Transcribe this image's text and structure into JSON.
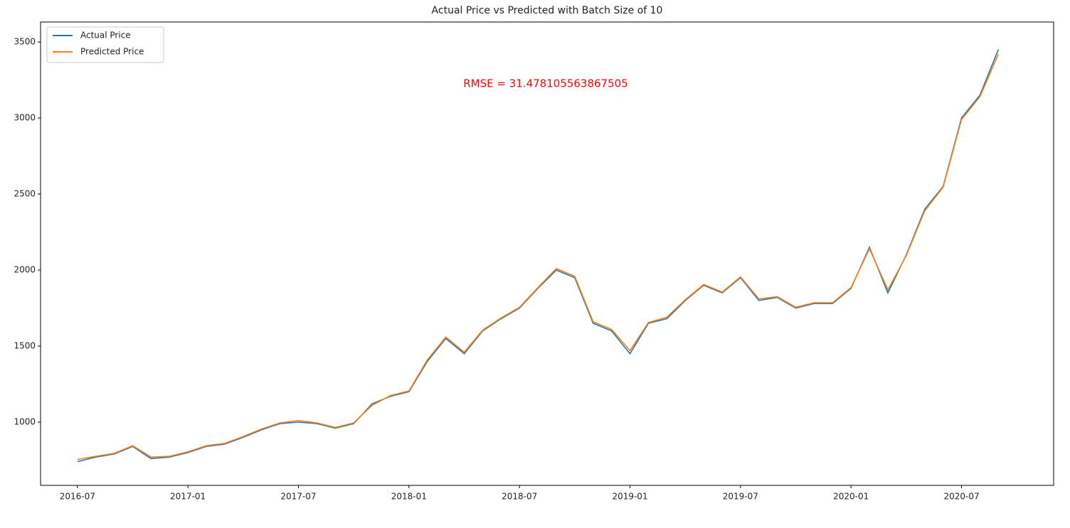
{
  "chart_data": {
    "type": "line",
    "title": "Actual Price vs Predicted with Batch Size of 10",
    "annotation": "RMSE = 31.478105563867505",
    "annotation_color": "#ff0000",
    "x": [
      "2016-07",
      "2016-08",
      "2016-09",
      "2016-10",
      "2016-11",
      "2016-12",
      "2017-01",
      "2017-02",
      "2017-03",
      "2017-04",
      "2017-05",
      "2017-06",
      "2017-07",
      "2017-08",
      "2017-09",
      "2017-10",
      "2017-11",
      "2017-12",
      "2018-01",
      "2018-02",
      "2018-03",
      "2018-04",
      "2018-05",
      "2018-06",
      "2018-07",
      "2018-08",
      "2018-09",
      "2018-10",
      "2018-11",
      "2018-12",
      "2019-01",
      "2019-02",
      "2019-03",
      "2019-04",
      "2019-05",
      "2019-06",
      "2019-07",
      "2019-08",
      "2019-09",
      "2019-10",
      "2019-11",
      "2019-12",
      "2020-01",
      "2020-02",
      "2020-03",
      "2020-04",
      "2020-05",
      "2020-06",
      "2020-07",
      "2020-08",
      "2020-09"
    ],
    "series": [
      {
        "name": "Actual Price",
        "color": "#1f77b4",
        "values": [
          740,
          770,
          790,
          840,
          760,
          770,
          800,
          840,
          855,
          900,
          950,
          990,
          1000,
          990,
          960,
          990,
          1120,
          1170,
          1200,
          1400,
          1550,
          1450,
          1600,
          1680,
          1750,
          1880,
          2000,
          1950,
          1650,
          1600,
          1450,
          1650,
          1680,
          1800,
          1900,
          1850,
          1950,
          1800,
          1820,
          1750,
          1780,
          1780,
          1880,
          2150,
          1850,
          2100,
          2400,
          2550,
          3000,
          3150,
          3450
        ]
      },
      {
        "name": "Predicted Price",
        "color": "#ff7f0e",
        "values": [
          755,
          775,
          795,
          845,
          770,
          775,
          805,
          845,
          860,
          905,
          955,
          995,
          1010,
          995,
          965,
          995,
          1110,
          1175,
          1205,
          1410,
          1560,
          1460,
          1605,
          1685,
          1755,
          1885,
          2010,
          1960,
          1660,
          1610,
          1470,
          1655,
          1690,
          1805,
          1905,
          1855,
          1955,
          1810,
          1825,
          1755,
          1785,
          1785,
          1885,
          2140,
          1870,
          2095,
          2390,
          2545,
          2990,
          3140,
          3420
        ]
      }
    ],
    "xlim": [
      "2016-05",
      "2020-12"
    ],
    "xticks": [
      "2016-07",
      "2017-01",
      "2017-07",
      "2018-01",
      "2018-07",
      "2019-01",
      "2019-07",
      "2020-01",
      "2020-07"
    ],
    "ylim": [
      584,
      3631
    ],
    "yticks": [
      1000,
      1500,
      2000,
      2500,
      3000,
      3500
    ],
    "legend": "upper left",
    "grid": false
  }
}
